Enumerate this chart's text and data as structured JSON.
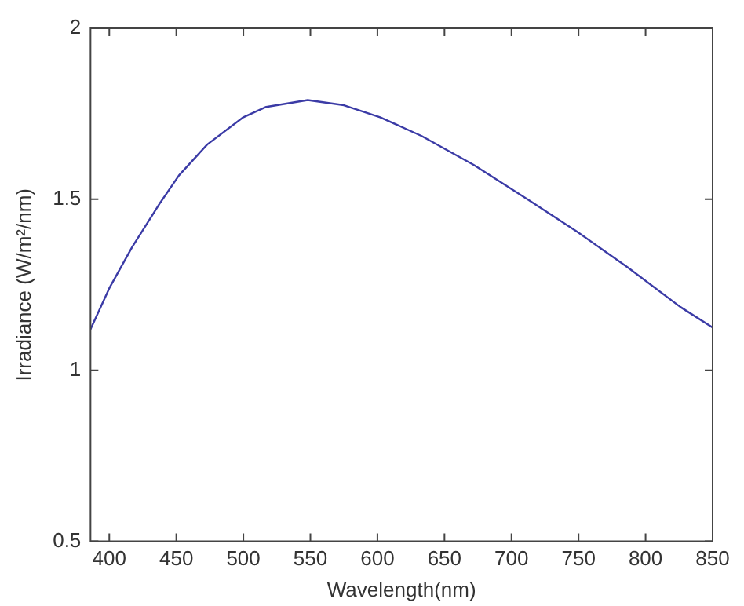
{
  "chart_data": {
    "type": "line",
    "xlabel": "Wavelength(nm)",
    "ylabel": "Irradiance (W/m²/nm)",
    "x": [
      386,
      400,
      417,
      438,
      452,
      473,
      500,
      517,
      548,
      575,
      602,
      633,
      672,
      710,
      749,
      787,
      826,
      850
    ],
    "series": [
      {
        "color": "#3b3ba6",
        "values": [
          1.12,
          1.24,
          1.36,
          1.49,
          1.57,
          1.66,
          1.74,
          1.77,
          1.79,
          1.775,
          1.74,
          1.685,
          1.6,
          1.505,
          1.405,
          1.3,
          1.185,
          1.125
        ]
      }
    ],
    "xlim": [
      386,
      850
    ],
    "xticks": [
      400,
      450,
      500,
      550,
      600,
      650,
      700,
      750,
      800,
      850
    ],
    "ylim": [
      0.5,
      2
    ],
    "yticks": [
      0.5,
      1,
      1.5,
      2
    ],
    "grid": false,
    "legend": false,
    "marker": "none",
    "line_style": "solid"
  }
}
